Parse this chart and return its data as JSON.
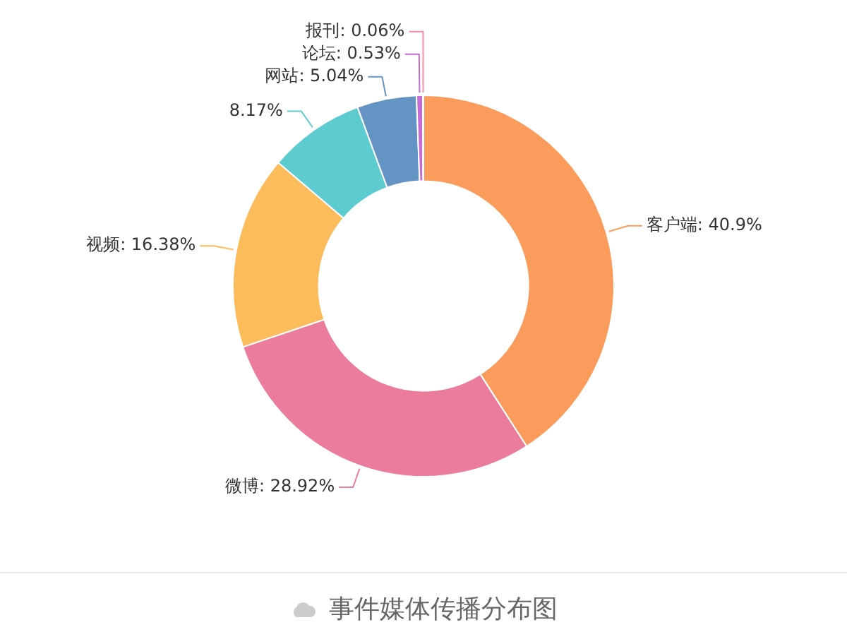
{
  "chart_data": {
    "type": "donut",
    "title": "事件媒体传播分布图",
    "categories": [
      "客户端",
      "微博",
      "视频",
      null,
      "网站",
      "论坛",
      "报刊"
    ],
    "values": [
      40.9,
      28.92,
      16.38,
      8.17,
      5.04,
      0.53,
      0.06
    ],
    "colors": [
      "#fc9c5c",
      "#ec7c9c",
      "#fcbc5c",
      "#5cccd0",
      "#6494c4",
      "#c46cd4",
      "#f48ca4"
    ],
    "value_labels": [
      "40.9%",
      "28.92%",
      "16.38%",
      "8.17%",
      "5.04%",
      "0.53%",
      "0.06%"
    ],
    "legend": false
  }
}
